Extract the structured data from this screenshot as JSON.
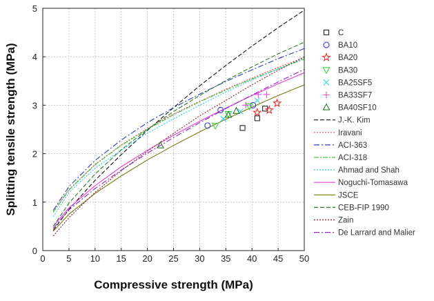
{
  "chart_data": {
    "type": "scatter",
    "xlabel": "Compressive strength (MPa)",
    "ylabel": "Splitting tensile strength (MPa)",
    "xlim": [
      0,
      50
    ],
    "ylim": [
      0,
      5
    ],
    "xticks": [
      0,
      5,
      10,
      15,
      20,
      25,
      30,
      35,
      40,
      45,
      50
    ],
    "yticks": [
      0,
      1,
      2,
      3,
      4,
      5
    ],
    "grid": true,
    "legend_position": "right",
    "point_series": [
      {
        "name": "C",
        "marker": "square",
        "color": "#222222",
        "points": [
          [
            38.2,
            2.53
          ],
          [
            41.0,
            2.73
          ],
          [
            42.5,
            2.93
          ]
        ]
      },
      {
        "name": "BA10",
        "marker": "circle",
        "color": "#3a3ad6",
        "points": [
          [
            31.5,
            2.58
          ],
          [
            34.0,
            2.9
          ],
          [
            40.2,
            3.0
          ]
        ]
      },
      {
        "name": "BA20",
        "marker": "star",
        "color": "#e03030",
        "points": [
          [
            41.0,
            2.85
          ],
          [
            43.3,
            2.9
          ],
          [
            44.8,
            3.04
          ]
        ]
      },
      {
        "name": "BA30",
        "marker": "triangle-down",
        "color": "#3ad63a",
        "points": [
          [
            33.0,
            2.58
          ],
          [
            35.5,
            2.82
          ],
          [
            39.5,
            2.98
          ]
        ]
      },
      {
        "name": "BA25SF5",
        "marker": "x",
        "color": "#33d6e8",
        "points": [
          [
            34.5,
            2.72
          ],
          [
            37.8,
            2.87
          ],
          [
            41.0,
            3.1
          ]
        ]
      },
      {
        "name": "BA33SF7",
        "marker": "plus",
        "color": "#e050e0",
        "points": [
          [
            38.8,
            3.0
          ],
          [
            41.2,
            3.22
          ],
          [
            42.8,
            3.22
          ]
        ]
      },
      {
        "name": "BA40SF10",
        "marker": "triangle-up",
        "color": "#2e7a2e",
        "points": [
          [
            22.5,
            2.17
          ],
          [
            35.5,
            2.8
          ],
          [
            37.0,
            2.88
          ]
        ]
      }
    ],
    "line_series": [
      {
        "name": "J.-K. Kim",
        "color": "#111111",
        "dash": "6,3",
        "x": [
          2,
          5,
          10,
          15,
          20,
          25,
          30,
          35,
          40,
          45,
          50
        ],
        "y": [
          0.42,
          0.85,
          1.45,
          1.98,
          2.48,
          2.95,
          3.4,
          3.82,
          4.22,
          4.6,
          4.96
        ]
      },
      {
        "name": "Iravani",
        "color": "#e05050",
        "dash": "2,2",
        "x": [
          2,
          5,
          10,
          15,
          20,
          25,
          30,
          35,
          40,
          45,
          50
        ],
        "y": [
          0.8,
          1.26,
          1.78,
          2.18,
          2.52,
          2.82,
          3.08,
          3.33,
          3.56,
          3.78,
          3.98
        ]
      },
      {
        "name": "ACI-363",
        "color": "#2a3fb8",
        "dash": "8,3,2,3",
        "x": [
          2,
          5,
          10,
          15,
          20,
          25,
          30,
          35,
          40,
          45,
          50
        ],
        "y": [
          0.83,
          1.32,
          1.86,
          2.28,
          2.64,
          2.95,
          3.23,
          3.49,
          3.73,
          3.96,
          4.17
        ]
      },
      {
        "name": "ACI-318",
        "color": "#40c840",
        "dash": "7,2,2,2",
        "x": [
          2,
          5,
          10,
          15,
          20,
          25,
          30,
          35,
          40,
          45,
          50
        ],
        "y": [
          0.79,
          1.25,
          1.77,
          2.17,
          2.5,
          2.8,
          3.07,
          3.31,
          3.54,
          3.75,
          3.95
        ]
      },
      {
        "name": "Ahmad and Shah",
        "color": "#30c8e8",
        "dash": "2,2",
        "x": [
          2,
          5,
          10,
          15,
          20,
          25,
          30,
          35,
          40,
          45,
          50
        ],
        "y": [
          0.7,
          1.2,
          1.7,
          2.07,
          2.42,
          2.72,
          3.0,
          3.27,
          3.52,
          3.75,
          3.97
        ]
      },
      {
        "name": "Noguchi-Tomasawa",
        "color": "#e040d8",
        "dash": "",
        "x": [
          2,
          5,
          10,
          15,
          20,
          25,
          30,
          35,
          40,
          45,
          50
        ],
        "y": [
          0.5,
          0.88,
          1.34,
          1.73,
          2.07,
          2.38,
          2.67,
          2.94,
          3.2,
          3.44,
          3.67
        ]
      },
      {
        "name": "JSCE",
        "color": "#7a7a10",
        "dash": "",
        "x": [
          2,
          5,
          10,
          15,
          20,
          25,
          30,
          35,
          40,
          45,
          50
        ],
        "y": [
          0.4,
          0.75,
          1.18,
          1.54,
          1.87,
          2.17,
          2.45,
          2.71,
          2.96,
          3.2,
          3.42
        ]
      },
      {
        "name": "CEB-FIP 1990",
        "color": "#2e7a2e",
        "dash": "6,3",
        "x": [
          2,
          5,
          10,
          15,
          20,
          25,
          30,
          35,
          40,
          45,
          50
        ],
        "y": [
          0.5,
          0.98,
          1.58,
          2.08,
          2.5,
          2.87,
          3.2,
          3.51,
          3.79,
          4.06,
          4.3
        ]
      },
      {
        "name": "Zain",
        "color": "#8a2020",
        "dash": "2,2",
        "x": [
          2,
          5,
          10,
          15,
          20,
          25,
          30,
          35,
          40,
          45,
          50
        ],
        "y": [
          0.3,
          0.68,
          1.2,
          1.65,
          2.05,
          2.42,
          2.78,
          3.1,
          3.42,
          3.72,
          4.0
        ]
      },
      {
        "name": "De Larrard and Malier",
        "color": "#8a20c8",
        "dash": "8,3,2,3",
        "x": [
          2,
          5,
          10,
          15,
          20,
          25,
          30,
          35,
          40,
          45,
          50
        ],
        "y": [
          0.46,
          0.84,
          1.28,
          1.66,
          2.01,
          2.33,
          2.64,
          2.93,
          3.21,
          3.48,
          3.74
        ]
      }
    ]
  }
}
